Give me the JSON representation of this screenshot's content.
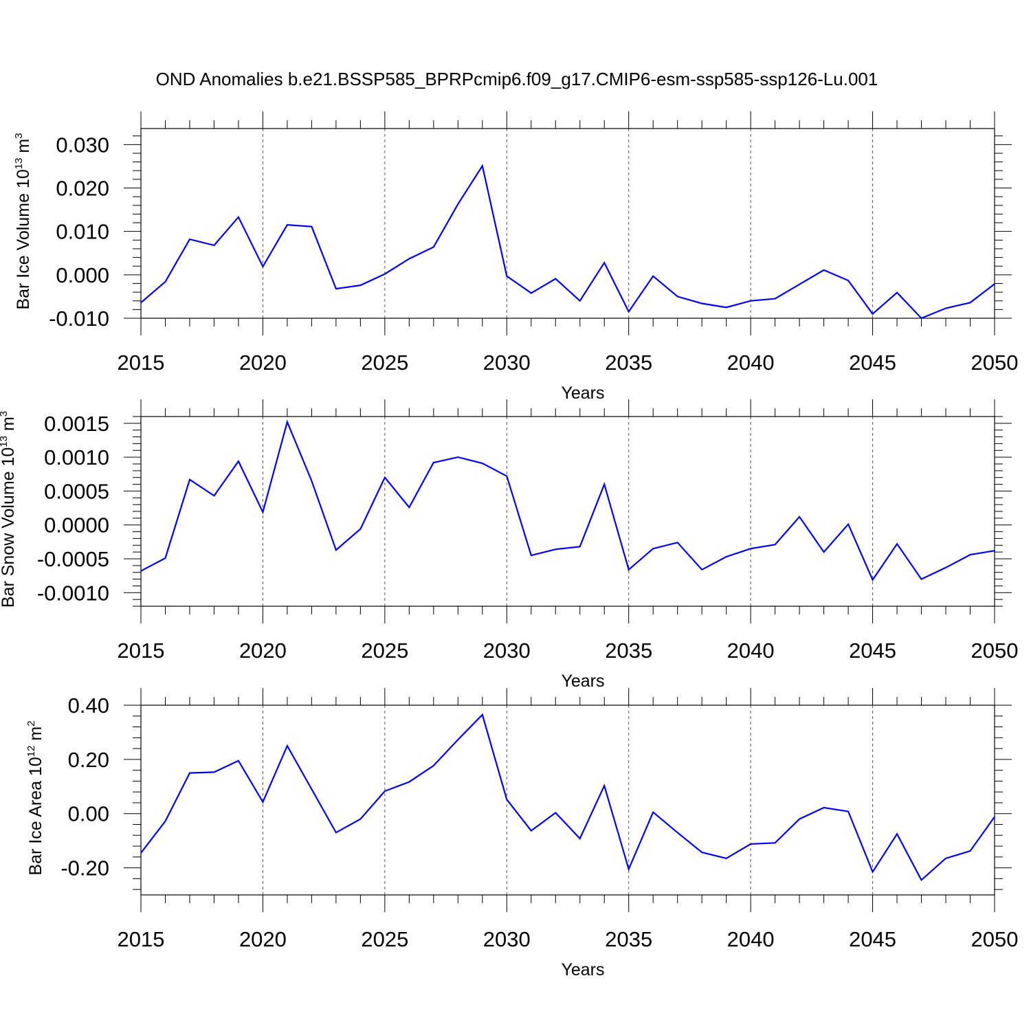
{
  "title": "OND Anomalies b.e21.BSSP585_BPRPcmip6.f09_g17.CMIP6-esm-ssp585-ssp126-Lu.001",
  "chart_data": [
    {
      "type": "line",
      "title": "OND Anomalies b.e21.BSSP585_BPRPcmip6.f09_g17.CMIP6-esm-ssp585-ssp126-Lu.001",
      "xlabel": "Years",
      "ylabel": {
        "base": "Bar Ice Volume 10",
        "exp1": "13",
        "mid": " m",
        "exp2": "3"
      },
      "xlim": [
        2015,
        2050
      ],
      "ylim": [
        -0.01,
        0.0337
      ],
      "xticks": [
        2015,
        2020,
        2025,
        2030,
        2035,
        2040,
        2045,
        2050
      ],
      "xtick_labels": [
        "2015",
        "2020",
        "2025",
        "2030",
        "2035",
        "2040",
        "2045",
        "2050"
      ],
      "yticks": [
        -0.01,
        0.0,
        0.01,
        0.02,
        0.03
      ],
      "ytick_labels": [
        "-0.010",
        "0.000",
        "0.010",
        "0.020",
        "0.030"
      ],
      "y_minor_step": 0.002,
      "grid": "vertical dashed lines at major x ticks",
      "series": [
        {
          "name": "Bar Ice Volume",
          "color": "#0000ff",
          "x": [
            2015,
            2016,
            2017,
            2018,
            2019,
            2020,
            2021,
            2022,
            2023,
            2024,
            2025,
            2026,
            2027,
            2028,
            2029,
            2030,
            2031,
            2032,
            2033,
            2034,
            2035,
            2036,
            2037,
            2038,
            2039,
            2040,
            2041,
            2042,
            2043,
            2044,
            2045,
            2046,
            2047,
            2048,
            2049,
            2050
          ],
          "values": [
            -0.0064,
            -0.0016,
            0.0082,
            0.0068,
            0.0133,
            0.0019,
            0.0115,
            0.0111,
            -0.0032,
            -0.0024,
            0.0002,
            0.0037,
            0.0064,
            0.0163,
            0.0251,
            -0.0003,
            -0.0042,
            -0.0009,
            -0.006,
            0.0028,
            -0.0085,
            -0.0003,
            -0.005,
            -0.0066,
            -0.0075,
            -0.006,
            -0.0055,
            -0.0022,
            0.0011,
            -0.0013,
            -0.009,
            -0.0041,
            -0.01,
            -0.0077,
            -0.0064,
            -0.0021
          ]
        }
      ]
    },
    {
      "type": "line",
      "xlabel": "Years",
      "ylabel": {
        "base": "Bar Snow Volume 10",
        "exp1": "13",
        "mid": " m",
        "exp2": "3"
      },
      "xlim": [
        2015,
        2050
      ],
      "ylim": [
        -0.0012,
        0.0016
      ],
      "xticks": [
        2015,
        2020,
        2025,
        2030,
        2035,
        2040,
        2045,
        2050
      ],
      "xtick_labels": [
        "2015",
        "2020",
        "2025",
        "2030",
        "2035",
        "2040",
        "2045",
        "2050"
      ],
      "yticks": [
        -0.001,
        -0.0005,
        0.0,
        0.0005,
        0.001,
        0.0015
      ],
      "ytick_labels": [
        "-0.0010",
        "-0.0005",
        "0.0000",
        "0.0005",
        "0.0010",
        "0.0015"
      ],
      "y_minor_step": 0.0001,
      "grid": "vertical dashed lines at major x ticks",
      "series": [
        {
          "name": "Bar Snow Volume",
          "color": "#0000ff",
          "x": [
            2015,
            2016,
            2017,
            2018,
            2019,
            2020,
            2021,
            2022,
            2023,
            2024,
            2025,
            2026,
            2027,
            2028,
            2029,
            2030,
            2031,
            2032,
            2033,
            2034,
            2035,
            2036,
            2037,
            2038,
            2039,
            2040,
            2041,
            2042,
            2043,
            2044,
            2045,
            2046,
            2047,
            2048,
            2049,
            2050
          ],
          "values": [
            -0.00068,
            -0.00049,
            0.00067,
            0.00043,
            0.00094,
            0.00019,
            0.00152,
            0.00065,
            -0.00037,
            -6e-05,
            0.0007,
            0.00026,
            0.00092,
            0.001,
            0.00091,
            0.00072,
            -0.00045,
            -0.00036,
            -0.00032,
            0.0006,
            -0.00066,
            -0.00035,
            -0.00026,
            -0.00066,
            -0.00047,
            -0.00035,
            -0.00029,
            0.00012,
            -0.0004,
            1e-05,
            -0.00081,
            -0.00028,
            -0.0008,
            -0.00063,
            -0.00044,
            -0.00038
          ]
        }
      ]
    },
    {
      "type": "line",
      "xlabel": "Years",
      "ylabel": {
        "base": "Bar Ice Area 10",
        "exp1": "12",
        "mid": " m",
        "exp2": "2"
      },
      "xlim": [
        2015,
        2050
      ],
      "ylim": [
        -0.3,
        0.4
      ],
      "xticks": [
        2015,
        2020,
        2025,
        2030,
        2035,
        2040,
        2045,
        2050
      ],
      "xtick_labels": [
        "2015",
        "2020",
        "2025",
        "2030",
        "2035",
        "2040",
        "2045",
        "2050"
      ],
      "yticks": [
        -0.2,
        0.0,
        0.2,
        0.4
      ],
      "ytick_labels": [
        "-0.20",
        "0.00",
        "0.20",
        "0.40"
      ],
      "y_minor_step": 0.04,
      "grid": "vertical dashed lines at major x ticks",
      "series": [
        {
          "name": "Bar Ice Area",
          "color": "#0000ff",
          "x": [
            2015,
            2016,
            2017,
            2018,
            2019,
            2020,
            2021,
            2022,
            2023,
            2024,
            2025,
            2026,
            2027,
            2028,
            2029,
            2030,
            2031,
            2032,
            2033,
            2034,
            2035,
            2036,
            2037,
            2038,
            2039,
            2040,
            2041,
            2042,
            2043,
            2044,
            2045,
            2046,
            2047,
            2048,
            2049,
            2050
          ],
          "values": [
            -0.145,
            -0.028,
            0.15,
            0.153,
            0.195,
            0.043,
            0.25,
            0.09,
            -0.07,
            -0.02,
            0.083,
            0.117,
            0.177,
            0.273,
            0.365,
            0.052,
            -0.063,
            0.003,
            -0.092,
            0.103,
            -0.205,
            0.005,
            -0.07,
            -0.143,
            -0.165,
            -0.112,
            -0.108,
            -0.02,
            0.022,
            0.008,
            -0.215,
            -0.075,
            -0.245,
            -0.165,
            -0.138,
            -0.012
          ]
        }
      ]
    }
  ]
}
